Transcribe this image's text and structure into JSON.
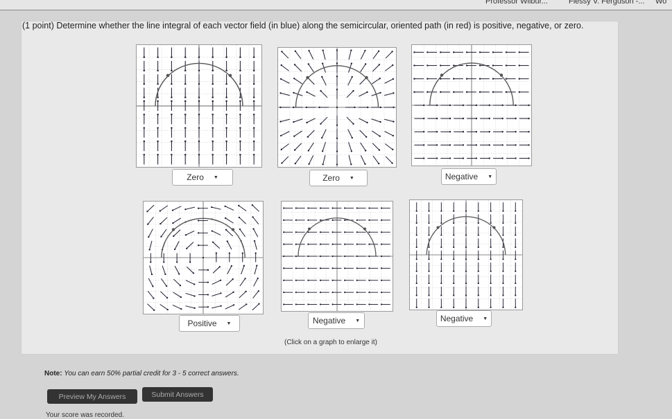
{
  "browser_tabs": [
    "Professor Wilbur...",
    "Flessy V. Ferguson -...",
    "Wo"
  ],
  "question": {
    "prompt": "(1 point) Determine whether the line integral of each vector field (in blue) along the semicircular, oriented path (in red) is positive, negative, or zero.",
    "graphs": [
      {
        "answer": "Zero",
        "field": "vertical-converging"
      },
      {
        "answer": "Zero",
        "field": "radial"
      },
      {
        "answer": "Negative",
        "field": "horizontal-opposing"
      },
      {
        "answer": "Positive",
        "field": "rotational"
      },
      {
        "answer": "Negative",
        "field": "horizontal-left"
      },
      {
        "answer": "Negative",
        "field": "vertical-down"
      }
    ],
    "caption": "(Click on a graph to enlarge it)"
  },
  "note": {
    "label": "Note:",
    "text": "You can earn 50% partial credit for 3 - 5 correct answers."
  },
  "buttons": {
    "preview": "Preview My Answers",
    "submit": "Submit Answers"
  },
  "score_text": "Your score was recorded.",
  "colors": {
    "button_bg": "#333333",
    "panel_bg": "#e9e9e9"
  }
}
